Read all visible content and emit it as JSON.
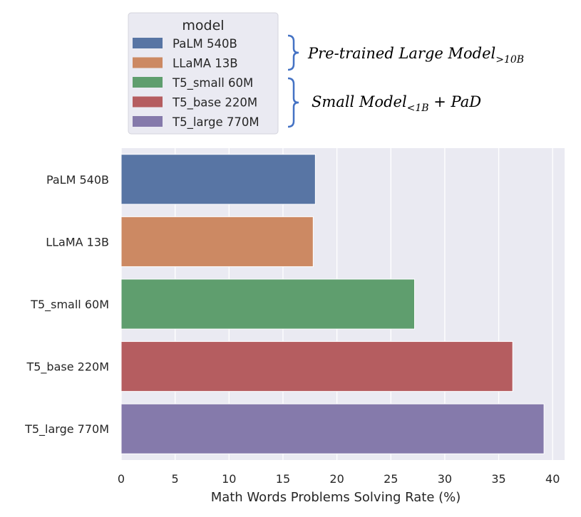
{
  "chart_data": {
    "type": "bar",
    "orientation": "horizontal",
    "categories": [
      "PaLM 540B",
      "LLaMA 13B",
      "T5_small 60M",
      "T5_base 220M",
      "T5_large 770M"
    ],
    "values": [
      18.0,
      17.8,
      27.2,
      36.3,
      39.2
    ],
    "colors": [
      "#5875a4",
      "#cc8963",
      "#5f9e6e",
      "#b55d60",
      "#857aab"
    ],
    "xlabel": "Math Words Problems Solving Rate (%)",
    "ylabel": "",
    "xlim": [
      0,
      41
    ],
    "xticks": [
      0,
      5,
      10,
      15,
      20,
      25,
      30,
      35,
      40
    ],
    "grid": true,
    "legend": {
      "title": "model",
      "placement": "top-center-outside",
      "entries": [
        "PaLM 540B",
        "LLaMA 13B",
        "T5_small 60M",
        "T5_base 220M",
        "T5_large 770M"
      ]
    },
    "annotations": [
      {
        "text": "Pre-trained Large Model",
        "subscript": ">10B",
        "suffix": "",
        "groups": [
          0,
          1
        ]
      },
      {
        "text": "Small Model",
        "subscript": "<1B",
        "suffix": " + PaD",
        "groups": [
          2,
          3,
          4
        ]
      }
    ],
    "colors_meta": {
      "plot_bg": "#eaeaf2",
      "grid": "#ffffff",
      "bracket": "#4472c4"
    }
  }
}
